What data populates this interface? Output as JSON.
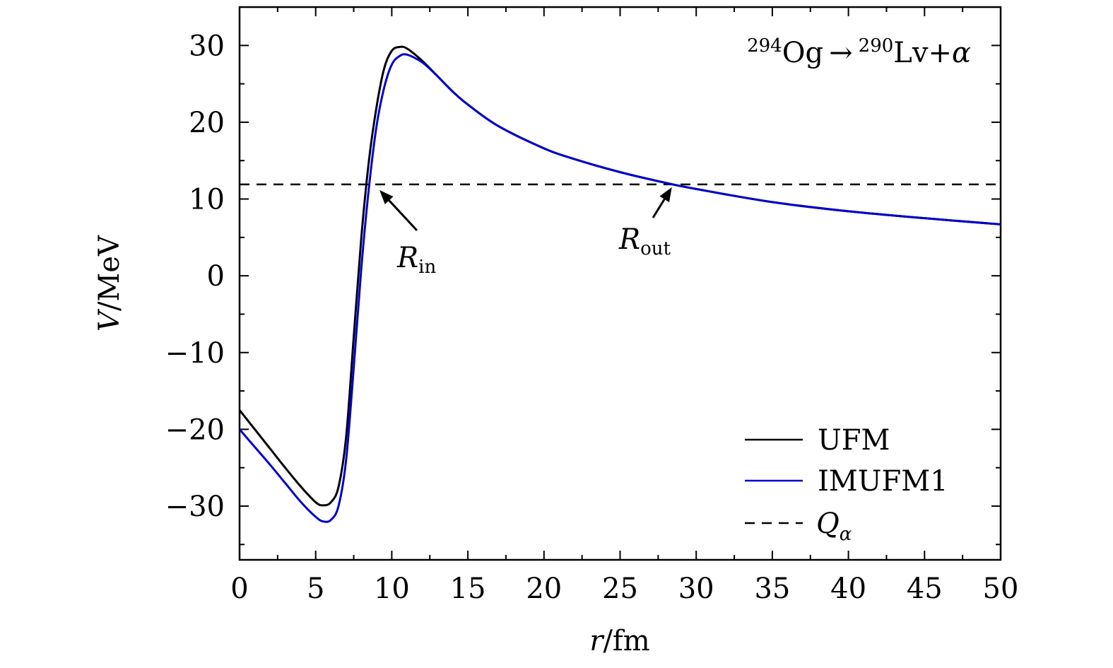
{
  "chart_data": {
    "type": "line",
    "annotation": {
      "parent_mass": "294",
      "parent": "Og",
      "arrow": "→",
      "daughter_mass": "290",
      "daughter": "Lv",
      "plus": "+",
      "alpha": "α"
    },
    "xlabel": {
      "symbol": "r",
      "unit": "/fm"
    },
    "ylabel": {
      "symbol": "V",
      "unit": "/MeV"
    },
    "xlim": [
      0,
      50
    ],
    "ylim": [
      -37,
      35
    ],
    "xticks": [
      0,
      5,
      10,
      15,
      20,
      25,
      30,
      35,
      40,
      45,
      50
    ],
    "yticks": [
      -30,
      -20,
      -10,
      0,
      10,
      20,
      30
    ],
    "tick_labels_x": [
      "0",
      "5",
      "10",
      "15",
      "20",
      "25",
      "30",
      "35",
      "40",
      "45",
      "50"
    ],
    "tick_labels_y": [
      "−30",
      "−20",
      "−10",
      "0",
      "10",
      "20",
      "30"
    ],
    "grid": false,
    "legend_position": "bottom-right",
    "q_alpha": 11.9,
    "series": [
      {
        "name": "UFM",
        "color": "#000000",
        "dash": "solid",
        "points": [
          [
            0,
            -17.5
          ],
          [
            1,
            -20.0
          ],
          [
            2,
            -22.5
          ],
          [
            3,
            -25.0
          ],
          [
            4,
            -27.4
          ],
          [
            5,
            -29.5
          ],
          [
            5.5,
            -29.9
          ],
          [
            6,
            -29.5
          ],
          [
            6.5,
            -27.5
          ],
          [
            7,
            -21.0
          ],
          [
            7.5,
            -8.0
          ],
          [
            8,
            5.0
          ],
          [
            8.5,
            15.0
          ],
          [
            9,
            22.0
          ],
          [
            9.5,
            27.0
          ],
          [
            10,
            29.3
          ],
          [
            10.5,
            29.8
          ],
          [
            11,
            29.6
          ],
          [
            12,
            28.0
          ],
          [
            13,
            26.0
          ],
          [
            14,
            24.0
          ],
          [
            15,
            22.3
          ],
          [
            17,
            19.5
          ],
          [
            20,
            16.6
          ],
          [
            22,
            15.2
          ],
          [
            25,
            13.5
          ],
          [
            28,
            12.1
          ],
          [
            30,
            11.3
          ],
          [
            35,
            9.6
          ],
          [
            40,
            8.4
          ],
          [
            45,
            7.5
          ],
          [
            50,
            6.7
          ]
        ]
      },
      {
        "name": "IMUFM1",
        "color": "#0000cc",
        "dash": "solid",
        "points": [
          [
            0,
            -20.0
          ],
          [
            1,
            -22.3
          ],
          [
            2,
            -24.6
          ],
          [
            3,
            -27.0
          ],
          [
            4,
            -29.4
          ],
          [
            5,
            -31.4
          ],
          [
            5.5,
            -32.0
          ],
          [
            6,
            -31.8
          ],
          [
            6.5,
            -30.0
          ],
          [
            7,
            -24.0
          ],
          [
            7.5,
            -12.0
          ],
          [
            8,
            1.0
          ],
          [
            8.5,
            11.5
          ],
          [
            9,
            19.5
          ],
          [
            9.5,
            24.5
          ],
          [
            10,
            27.5
          ],
          [
            10.5,
            28.6
          ],
          [
            11,
            28.8
          ],
          [
            12,
            27.8
          ],
          [
            13,
            26.0
          ],
          [
            14,
            24.0
          ],
          [
            15,
            22.3
          ],
          [
            17,
            19.5
          ],
          [
            20,
            16.6
          ],
          [
            22,
            15.2
          ],
          [
            25,
            13.5
          ],
          [
            28,
            12.1
          ],
          [
            30,
            11.3
          ],
          [
            35,
            9.6
          ],
          [
            40,
            8.4
          ],
          [
            45,
            7.5
          ],
          [
            50,
            6.7
          ]
        ]
      }
    ],
    "legend": [
      {
        "label": "UFM",
        "style": "solid",
        "color": "#000000"
      },
      {
        "label": "IMUFM1",
        "style": "solid",
        "color": "#0000cc"
      },
      {
        "label": "Q",
        "sub": "α",
        "style": "dashed",
        "color": "#000000"
      }
    ],
    "markers": [
      {
        "label": "R",
        "sub": "in",
        "target": [
          9.1,
          11.9
        ]
      },
      {
        "label": "R",
        "sub": "out",
        "target": [
          28.4,
          11.9
        ]
      }
    ]
  }
}
